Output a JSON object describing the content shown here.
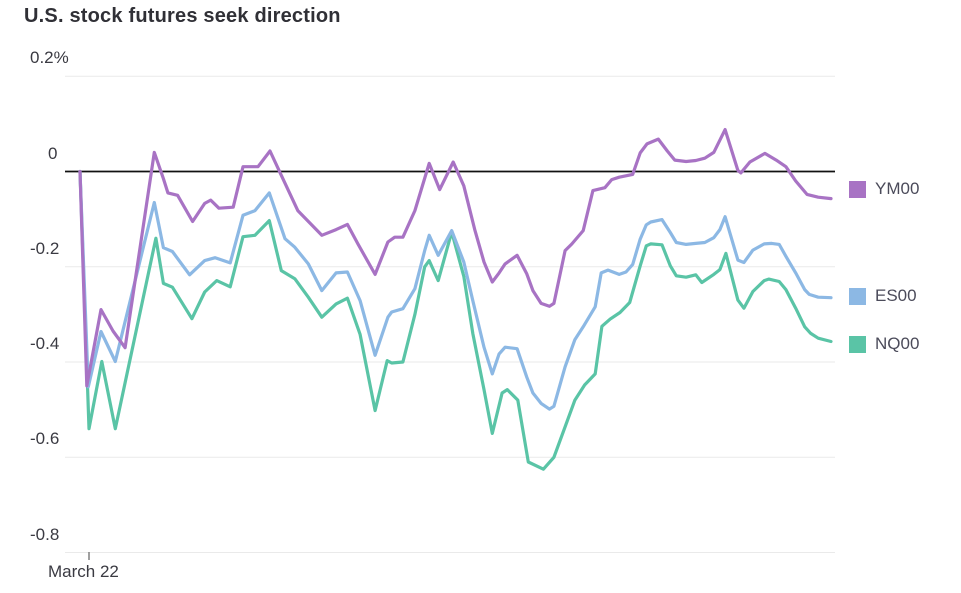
{
  "title": "U.S. stock futures seek direction",
  "chart_data": {
    "type": "line",
    "title": "U.S. stock futures seek direction",
    "x_axis": {
      "label": "March 22",
      "unit": "time (intraday, left to right)"
    },
    "y_axis": {
      "unit": "%",
      "tick_labels": [
        "0.2%",
        "0",
        "-0.2",
        "-0.4",
        "-0.6",
        "-0.8"
      ],
      "tick_values": [
        0.2,
        0,
        -0.2,
        -0.4,
        -0.6,
        -0.8
      ],
      "range": [
        -0.8,
        0.2
      ],
      "zero_line": true,
      "grid": true
    },
    "legend": {
      "position": "right",
      "entries": [
        "YM00",
        "ES00",
        "NQ00"
      ]
    },
    "point_format": "[percent_across_time_axis_0_to_100, percent_change]",
    "series": [
      {
        "name": "YM00",
        "color": "#a873c4",
        "points": [
          [
            0,
            0
          ],
          [
            0.9,
            -0.45
          ],
          [
            2.8,
            -0.29
          ],
          [
            4.4,
            -0.335
          ],
          [
            6,
            -0.37
          ],
          [
            9.9,
            0.04
          ],
          [
            11.1,
            -0.015
          ],
          [
            11.7,
            -0.045
          ],
          [
            13,
            -0.05
          ],
          [
            15,
            -0.105
          ],
          [
            16.6,
            -0.067
          ],
          [
            17.4,
            -0.06
          ],
          [
            18.5,
            -0.077
          ],
          [
            20.4,
            -0.075
          ],
          [
            21.7,
            0.01
          ],
          [
            23.7,
            0.01
          ],
          [
            25.3,
            0.043
          ],
          [
            26.8,
            -0.008
          ],
          [
            29,
            -0.082
          ],
          [
            32.2,
            -0.134
          ],
          [
            34.1,
            -0.122
          ],
          [
            35.6,
            -0.111
          ],
          [
            37,
            -0.152
          ],
          [
            39.3,
            -0.216
          ],
          [
            41,
            -0.148
          ],
          [
            41.9,
            -0.138
          ],
          [
            43,
            -0.138
          ],
          [
            44.6,
            -0.082
          ],
          [
            46.5,
            0.017
          ],
          [
            47.9,
            -0.038
          ],
          [
            49.7,
            0.02
          ],
          [
            51.1,
            -0.03
          ],
          [
            52.6,
            -0.124
          ],
          [
            53.8,
            -0.19
          ],
          [
            54.9,
            -0.232
          ],
          [
            55.8,
            -0.213
          ],
          [
            56.6,
            -0.194
          ],
          [
            58.2,
            -0.176
          ],
          [
            59.5,
            -0.215
          ],
          [
            60.3,
            -0.25
          ],
          [
            61.4,
            -0.277
          ],
          [
            62.5,
            -0.283
          ],
          [
            63.1,
            -0.277
          ],
          [
            64.6,
            -0.166
          ],
          [
            65.5,
            -0.152
          ],
          [
            67,
            -0.124
          ],
          [
            68.3,
            -0.04
          ],
          [
            69.9,
            -0.034
          ],
          [
            70.8,
            -0.017
          ],
          [
            71.8,
            -0.012
          ],
          [
            73.6,
            -0.006
          ],
          [
            74.6,
            0.039
          ],
          [
            75.5,
            0.058
          ],
          [
            77,
            0.068
          ],
          [
            78.2,
            0.043
          ],
          [
            79.2,
            0.024
          ],
          [
            80.7,
            0.021
          ],
          [
            82,
            0.023
          ],
          [
            83.2,
            0.028
          ],
          [
            84.4,
            0.04
          ],
          [
            85.9,
            0.088
          ],
          [
            87.6,
            0.002
          ],
          [
            88,
            -0.003
          ],
          [
            89.2,
            0.02
          ],
          [
            91.2,
            0.038
          ],
          [
            92.7,
            0.024
          ],
          [
            94,
            0.01
          ],
          [
            95.3,
            -0.02
          ],
          [
            96.8,
            -0.048
          ],
          [
            98.3,
            -0.054
          ],
          [
            100,
            -0.057
          ]
        ]
      },
      {
        "name": "ES00",
        "color": "#8cb8e4",
        "points": [
          [
            0,
            0
          ],
          [
            1.1,
            -0.452
          ],
          [
            2.8,
            -0.336
          ],
          [
            4.7,
            -0.399
          ],
          [
            9.9,
            -0.065
          ],
          [
            11.1,
            -0.16
          ],
          [
            12.3,
            -0.168
          ],
          [
            14.6,
            -0.217
          ],
          [
            16.6,
            -0.187
          ],
          [
            18,
            -0.181
          ],
          [
            20,
            -0.192
          ],
          [
            21.7,
            -0.092
          ],
          [
            23.3,
            -0.082
          ],
          [
            25.2,
            -0.045
          ],
          [
            27.3,
            -0.141
          ],
          [
            28.6,
            -0.159
          ],
          [
            30.4,
            -0.194
          ],
          [
            32.2,
            -0.25
          ],
          [
            34.1,
            -0.213
          ],
          [
            35.6,
            -0.211
          ],
          [
            37.3,
            -0.271
          ],
          [
            39.3,
            -0.386
          ],
          [
            41,
            -0.306
          ],
          [
            41.5,
            -0.295
          ],
          [
            43,
            -0.288
          ],
          [
            44.6,
            -0.246
          ],
          [
            45.9,
            -0.166
          ],
          [
            46.5,
            -0.134
          ],
          [
            47.7,
            -0.176
          ],
          [
            49.5,
            -0.124
          ],
          [
            51.1,
            -0.19
          ],
          [
            52.3,
            -0.271
          ],
          [
            53.8,
            -0.369
          ],
          [
            54.9,
            -0.425
          ],
          [
            55.8,
            -0.383
          ],
          [
            56.6,
            -0.369
          ],
          [
            58.2,
            -0.372
          ],
          [
            59.5,
            -0.432
          ],
          [
            60.3,
            -0.465
          ],
          [
            61.4,
            -0.487
          ],
          [
            62.5,
            -0.499
          ],
          [
            63.1,
            -0.493
          ],
          [
            64.6,
            -0.41
          ],
          [
            65.9,
            -0.353
          ],
          [
            67,
            -0.326
          ],
          [
            68.6,
            -0.284
          ],
          [
            69.4,
            -0.213
          ],
          [
            70.3,
            -0.207
          ],
          [
            71.8,
            -0.216
          ],
          [
            72.7,
            -0.211
          ],
          [
            73.6,
            -0.195
          ],
          [
            74.6,
            -0.142
          ],
          [
            75.4,
            -0.112
          ],
          [
            76,
            -0.106
          ],
          [
            77.5,
            -0.101
          ],
          [
            78.6,
            -0.128
          ],
          [
            79.4,
            -0.149
          ],
          [
            80.7,
            -0.153
          ],
          [
            82,
            -0.151
          ],
          [
            83.2,
            -0.149
          ],
          [
            84.4,
            -0.139
          ],
          [
            85.2,
            -0.122
          ],
          [
            85.9,
            -0.095
          ],
          [
            87.6,
            -0.186
          ],
          [
            88.4,
            -0.191
          ],
          [
            89.6,
            -0.165
          ],
          [
            91.1,
            -0.152
          ],
          [
            92.1,
            -0.151
          ],
          [
            93.1,
            -0.153
          ],
          [
            94,
            -0.178
          ],
          [
            95.3,
            -0.213
          ],
          [
            96.5,
            -0.248
          ],
          [
            97.1,
            -0.258
          ],
          [
            98.3,
            -0.264
          ],
          [
            100,
            -0.265
          ]
        ]
      },
      {
        "name": "NQ00",
        "color": "#5ac4a6",
        "points": [
          [
            0,
            0
          ],
          [
            1.2,
            -0.54
          ],
          [
            2.9,
            -0.399
          ],
          [
            4.7,
            -0.54
          ],
          [
            10.1,
            -0.14
          ],
          [
            11.1,
            -0.235
          ],
          [
            12.3,
            -0.243
          ],
          [
            14.9,
            -0.309
          ],
          [
            16.6,
            -0.253
          ],
          [
            18.2,
            -0.229
          ],
          [
            20,
            -0.242
          ],
          [
            21.7,
            -0.137
          ],
          [
            23.3,
            -0.134
          ],
          [
            25.2,
            -0.103
          ],
          [
            26.8,
            -0.208
          ],
          [
            28.6,
            -0.225
          ],
          [
            30.4,
            -0.264
          ],
          [
            32.2,
            -0.306
          ],
          [
            34.1,
            -0.278
          ],
          [
            35.6,
            -0.266
          ],
          [
            37.3,
            -0.342
          ],
          [
            39.3,
            -0.502
          ],
          [
            40.9,
            -0.397
          ],
          [
            41.5,
            -0.402
          ],
          [
            43,
            -0.4
          ],
          [
            44.6,
            -0.3
          ],
          [
            45.9,
            -0.2
          ],
          [
            46.5,
            -0.187
          ],
          [
            47.7,
            -0.229
          ],
          [
            49.5,
            -0.127
          ],
          [
            51.1,
            -0.22
          ],
          [
            52.3,
            -0.34
          ],
          [
            53.8,
            -0.458
          ],
          [
            54.9,
            -0.55
          ],
          [
            56.2,
            -0.465
          ],
          [
            56.9,
            -0.458
          ],
          [
            58.3,
            -0.48
          ],
          [
            59.7,
            -0.61
          ],
          [
            61.7,
            -0.625
          ],
          [
            63.1,
            -0.6
          ],
          [
            64.6,
            -0.536
          ],
          [
            65.9,
            -0.48
          ],
          [
            67.2,
            -0.448
          ],
          [
            68.6,
            -0.425
          ],
          [
            69.5,
            -0.325
          ],
          [
            70.6,
            -0.31
          ],
          [
            71.9,
            -0.296
          ],
          [
            73.2,
            -0.275
          ],
          [
            74.6,
            -0.198
          ],
          [
            75.4,
            -0.156
          ],
          [
            76,
            -0.152
          ],
          [
            77.5,
            -0.154
          ],
          [
            78.6,
            -0.198
          ],
          [
            79.4,
            -0.219
          ],
          [
            80.7,
            -0.222
          ],
          [
            82,
            -0.217
          ],
          [
            82.8,
            -0.233
          ],
          [
            84.4,
            -0.216
          ],
          [
            85.2,
            -0.206
          ],
          [
            86,
            -0.172
          ],
          [
            87.6,
            -0.27
          ],
          [
            88.4,
            -0.287
          ],
          [
            89.6,
            -0.252
          ],
          [
            91.1,
            -0.229
          ],
          [
            91.7,
            -0.226
          ],
          [
            93.1,
            -0.231
          ],
          [
            94,
            -0.248
          ],
          [
            95.3,
            -0.287
          ],
          [
            96.5,
            -0.326
          ],
          [
            97.3,
            -0.34
          ],
          [
            98.3,
            -0.35
          ],
          [
            100,
            -0.357
          ]
        ]
      }
    ],
    "colors": {
      "grid_line": "#eaeaea",
      "zero_line": "#111111",
      "axis_text": "#3a3a42",
      "title_text": "#303036",
      "legend_text": "#4b4b5a"
    }
  }
}
